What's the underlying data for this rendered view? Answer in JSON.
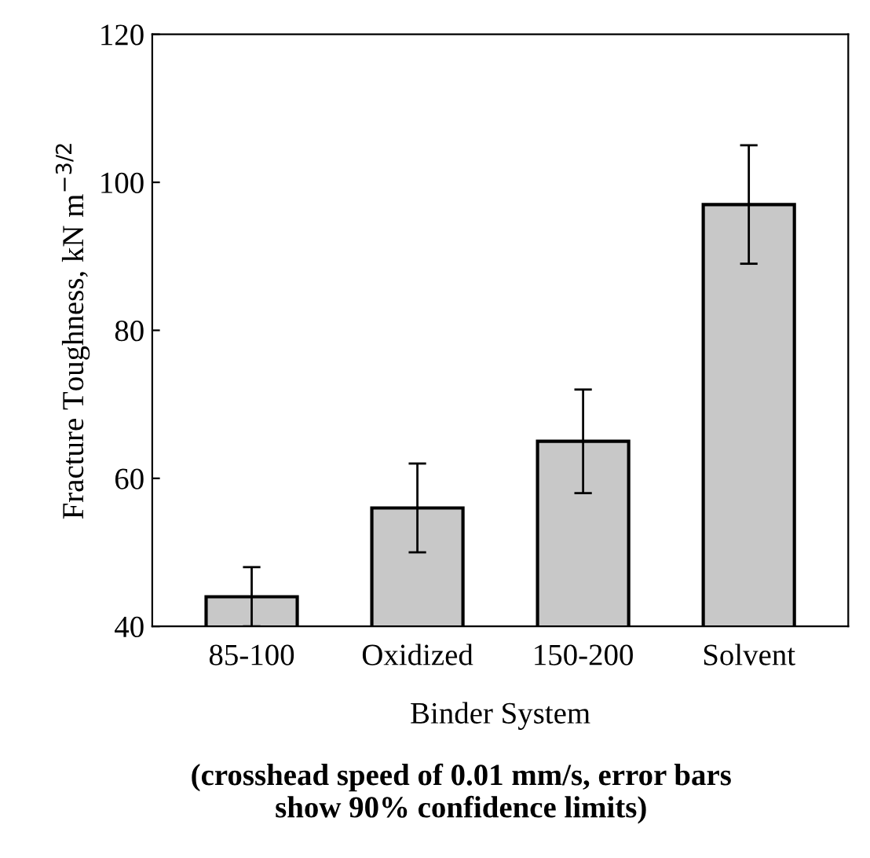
{
  "chart_data": {
    "type": "bar",
    "xlabel": "Binder System",
    "ylabel": "Fracture Toughness, kN m$^{−3/2}$",
    "categories": [
      "85-100",
      "Oxidized",
      "150-200",
      "Solvent"
    ],
    "values": [
      44,
      56,
      65,
      97
    ],
    "errors": [
      4,
      6,
      7,
      8
    ],
    "color": "#c8c8c8",
    "ylim": [
      40,
      120
    ],
    "yticks": [
      40,
      60,
      80,
      100,
      120
    ],
    "grid": false,
    "annotations": [
      "(crosshead speed of 0.01 mm/s, error bars\nshow 90% confidence limits)"
    ]
  }
}
